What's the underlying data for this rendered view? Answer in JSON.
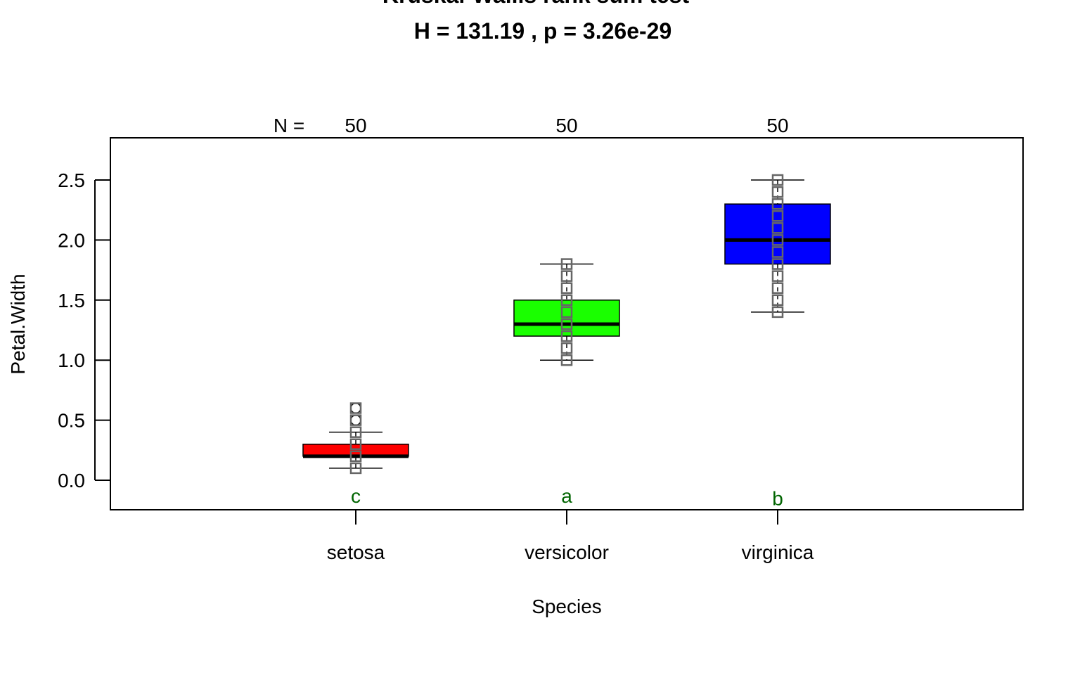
{
  "chart_data": {
    "type": "box",
    "title": "Kruskal-Wallis rank sum test",
    "subtitle": "H =  131.19 , p =  3.26e-29",
    "xlabel": "Species",
    "ylabel": "Petal.Width",
    "ylim": [
      -0.25,
      2.8
    ],
    "yticks": [
      0.0,
      0.5,
      1.0,
      1.5,
      2.0,
      2.5
    ],
    "ytick_labels": [
      "0.0",
      "0.5",
      "1.0",
      "1.5",
      "2.0",
      "2.5"
    ],
    "n_label": "N =",
    "categories": [
      "setosa",
      "versicolor",
      "virginica"
    ],
    "groups": [
      {
        "name": "setosa",
        "n": "50",
        "letter": "c",
        "letter_y": -0.13,
        "color": "#ff0000",
        "whisker_low": 0.1,
        "q1": 0.2,
        "median": 0.2,
        "q3": 0.3,
        "whisker_high": 0.4,
        "outliers": [
          0.5,
          0.6
        ],
        "points": [
          0.1,
          0.2,
          0.3,
          0.4
        ],
        "outlier_points": [
          0.5,
          0.6
        ]
      },
      {
        "name": "versicolor",
        "n": "50",
        "letter": "a",
        "letter_y": -0.13,
        "color": "#1aff00",
        "whisker_low": 1.0,
        "q1": 1.2,
        "median": 1.3,
        "q3": 1.5,
        "whisker_high": 1.8,
        "outliers": [],
        "points": [
          1.0,
          1.1,
          1.2,
          1.3,
          1.4,
          1.5,
          1.6,
          1.7,
          1.8
        ],
        "outlier_points": []
      },
      {
        "name": "virginica",
        "n": "50",
        "letter": "b",
        "letter_y": -0.15,
        "color": "#0000ff",
        "whisker_low": 1.4,
        "q1": 1.8,
        "median": 2.0,
        "q3": 2.3,
        "whisker_high": 2.5,
        "outliers": [],
        "points": [
          1.4,
          1.5,
          1.6,
          1.7,
          1.8,
          1.9,
          2.0,
          2.1,
          2.2,
          2.3,
          2.4,
          2.5
        ],
        "outlier_points": []
      }
    ],
    "colors": {
      "letters": "#006400",
      "points": "#666666",
      "axis": "#000000"
    },
    "grid": false,
    "legend": "none"
  }
}
